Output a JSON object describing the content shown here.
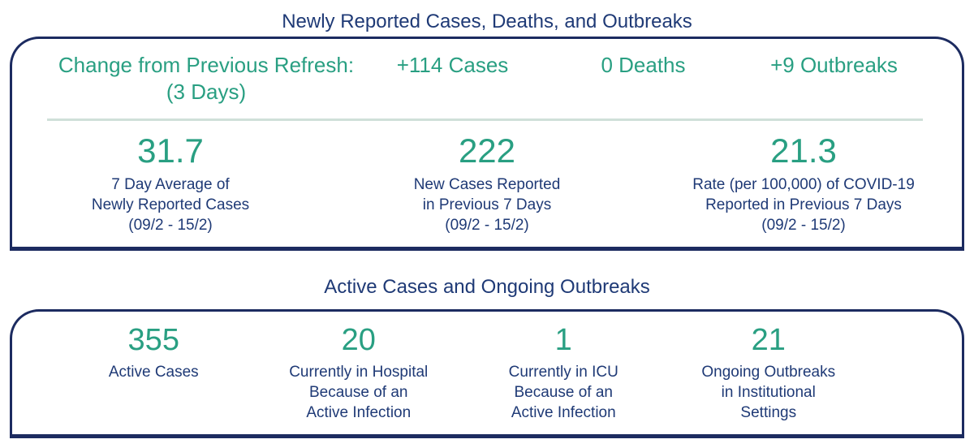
{
  "colors": {
    "teal": "#299f82",
    "navy_text": "#1f3a76",
    "border_navy": "#1c2b60",
    "divider": "#cfe0d9"
  },
  "section1": {
    "title": "Newly Reported Cases, Deaths, and Outbreaks",
    "change": {
      "label_line1": "Change from Previous Refresh:",
      "label_line2": "(3 Days)",
      "deltas": [
        {
          "value": "+114 Cases"
        },
        {
          "value": "0 Deaths"
        },
        {
          "value": "+9 Outbreaks"
        }
      ]
    },
    "stats": [
      {
        "value": "31.7",
        "label": "7 Day Average of\nNewly Reported Cases\n(09/2 - 15/2)"
      },
      {
        "value": "222",
        "label": "New Cases Reported\nin Previous 7 Days\n(09/2 - 15/2)"
      },
      {
        "value": "21.3",
        "label": "Rate (per 100,000) of COVID-19\nReported in Previous 7 Days\n(09/2 - 15/2)"
      }
    ]
  },
  "section2": {
    "title": "Active Cases and Ongoing Outbreaks",
    "stats": [
      {
        "value": "355",
        "label": "Active Cases"
      },
      {
        "value": "20",
        "label": "Currently in Hospital\nBecause of an\nActive Infection"
      },
      {
        "value": "1",
        "label": "Currently in ICU\nBecause of an\nActive Infection"
      },
      {
        "value": "21",
        "label": "Ongoing Outbreaks\nin Institutional\nSettings"
      }
    ]
  }
}
